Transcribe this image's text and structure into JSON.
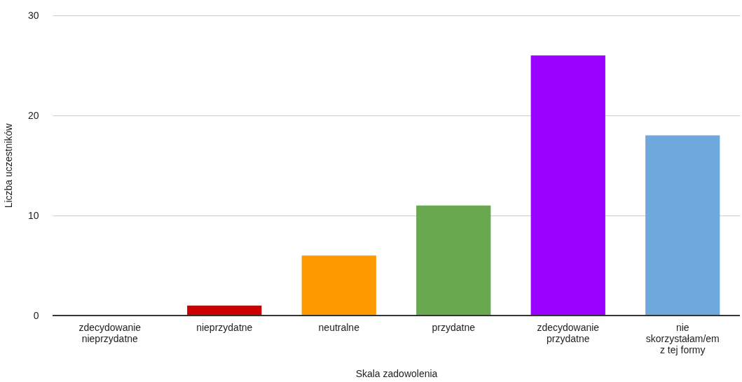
{
  "chart_data": {
    "type": "bar",
    "xlabel": "Skala zadowolenia",
    "ylabel": "Liczba uczestników",
    "categories": [
      "zdecydowanie nieprzydatne",
      "nieprzydatne",
      "neutralne",
      "przydatne",
      "zdecydowanie przydatne",
      "nie skorzystałam/em z tej formy"
    ],
    "values": [
      0,
      1,
      6,
      11,
      26,
      18
    ],
    "colors": [
      "#3366cc",
      "#cc0000",
      "#ff9900",
      "#6aa84f",
      "#9900ff",
      "#6fa8dc"
    ],
    "ylim": [
      0,
      30
    ],
    "yticks": [
      0,
      10,
      20,
      30
    ],
    "grid": "y"
  }
}
